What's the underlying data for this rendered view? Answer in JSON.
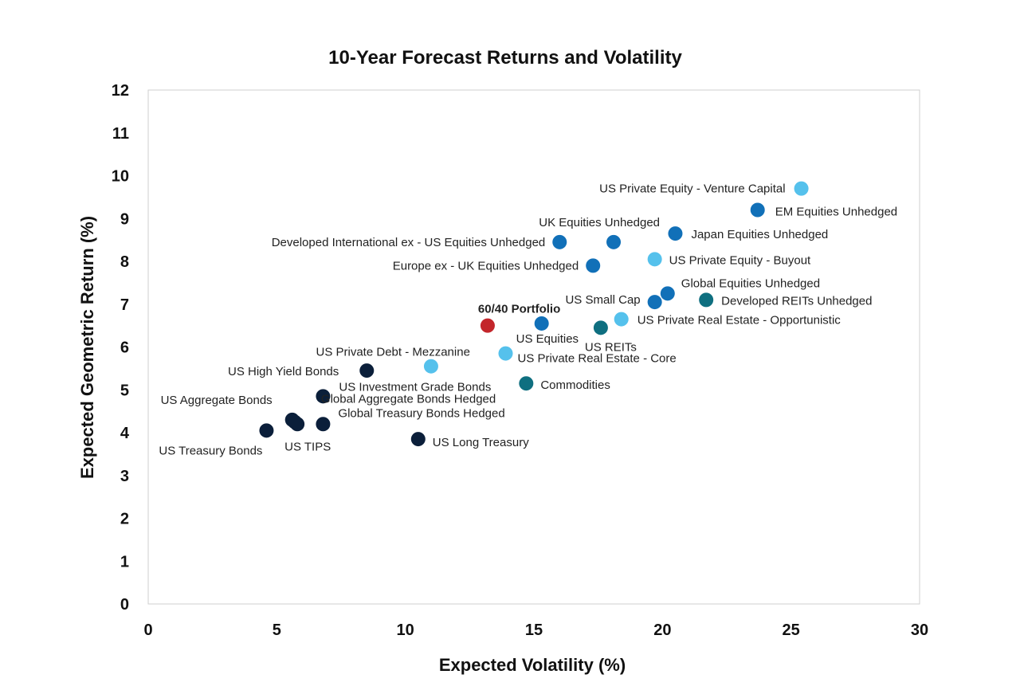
{
  "chart_data": {
    "type": "scatter",
    "title": "10-Year Forecast Returns and Volatility",
    "xlabel": "Expected Volatility (%)",
    "ylabel": "Expected Geometric Return (%)",
    "xlim": [
      0,
      30
    ],
    "ylim": [
      0,
      12
    ],
    "xticks": [
      0,
      5,
      10,
      15,
      20,
      25,
      30
    ],
    "yticks": [
      0,
      1,
      2,
      3,
      4,
      5,
      6,
      7,
      8,
      9,
      10,
      11,
      12
    ],
    "grid": false,
    "colors": {
      "navy": "#0b1f3a",
      "blue": "#1170b8",
      "light_blue": "#55c1ec",
      "teal": "#0f6f80",
      "red": "#c3262b"
    },
    "points": [
      {
        "label": "US Treasury Bonds",
        "x": 4.6,
        "y": 4.05,
        "color": "navy"
      },
      {
        "label": "US Aggregate Bonds",
        "x": 5.6,
        "y": 4.3,
        "color": "navy"
      },
      {
        "label": "US TIPS",
        "x": 5.8,
        "y": 4.2,
        "color": "navy"
      },
      {
        "label": "US Investment Grade Bonds",
        "x": 6.8,
        "y": 4.85,
        "color": "navy"
      },
      {
        "label": "Global Aggregate Bonds Hedged",
        "x": 5.7,
        "y": 4.25,
        "color": "navy"
      },
      {
        "label": "Global Treasury Bonds Hedged",
        "x": 6.8,
        "y": 4.2,
        "color": "navy"
      },
      {
        "label": "US High Yield Bonds",
        "x": 8.5,
        "y": 5.45,
        "color": "navy"
      },
      {
        "label": "US Long Treasury",
        "x": 10.5,
        "y": 3.85,
        "color": "navy"
      },
      {
        "label": "US Private Debt - Mezzanine",
        "x": 11.0,
        "y": 5.55,
        "color": "light_blue"
      },
      {
        "label": "60/40 Portfolio",
        "x": 13.2,
        "y": 6.5,
        "color": "red",
        "bold": true
      },
      {
        "label": "US Private Real Estate - Core",
        "x": 13.9,
        "y": 5.85,
        "color": "light_blue"
      },
      {
        "label": "US Equities",
        "x": 15.3,
        "y": 6.55,
        "color": "blue"
      },
      {
        "label": "Commodities",
        "x": 14.7,
        "y": 5.15,
        "color": "teal"
      },
      {
        "label": "Developed International ex - US Equities Unhedged",
        "x": 16.0,
        "y": 8.45,
        "color": "blue"
      },
      {
        "label": "UK Equities Unhedged",
        "x": 18.1,
        "y": 8.45,
        "color": "blue"
      },
      {
        "label": "Europe ex - UK Equities Unhedged",
        "x": 17.3,
        "y": 7.9,
        "color": "blue"
      },
      {
        "label": "US REITs",
        "x": 17.6,
        "y": 6.45,
        "color": "teal"
      },
      {
        "label": "US Private Real Estate - Opportunistic",
        "x": 18.4,
        "y": 6.65,
        "color": "light_blue"
      },
      {
        "label": "US Small Cap",
        "x": 19.7,
        "y": 7.05,
        "color": "blue"
      },
      {
        "label": "Global Equities Unhedged",
        "x": 20.2,
        "y": 7.25,
        "color": "blue"
      },
      {
        "label": "US Private Equity - Buyout",
        "x": 19.7,
        "y": 8.05,
        "color": "light_blue"
      },
      {
        "label": "Japan Equities Unhedged",
        "x": 20.5,
        "y": 8.65,
        "color": "blue"
      },
      {
        "label": "Developed REITs Unhedged",
        "x": 21.7,
        "y": 7.1,
        "color": "teal"
      },
      {
        "label": "EM Equities Unhedged",
        "x": 23.7,
        "y": 9.2,
        "color": "blue"
      },
      {
        "label": "US Private Equity - Venture Capital",
        "x": 25.4,
        "y": 9.7,
        "color": "light_blue"
      }
    ]
  }
}
